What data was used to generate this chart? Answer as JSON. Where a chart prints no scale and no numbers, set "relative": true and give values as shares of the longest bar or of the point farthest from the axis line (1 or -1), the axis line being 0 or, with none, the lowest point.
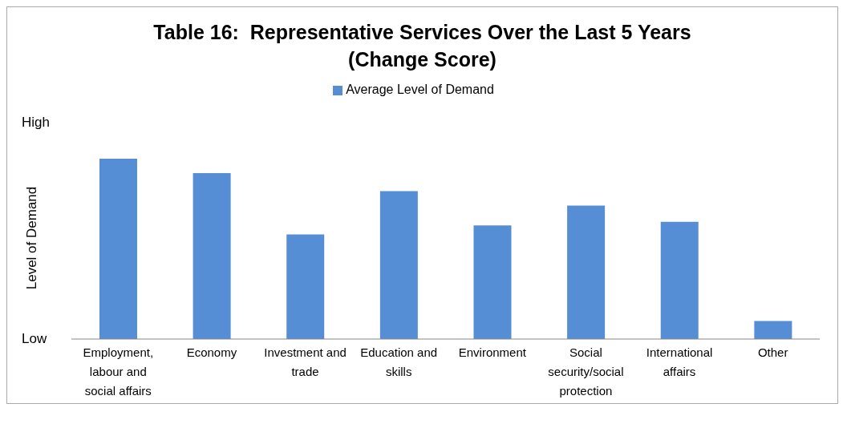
{
  "chart_data": {
    "type": "bar",
    "title": "Table 16:  Representative Services Over the Last 5 Years\n(Change Score)",
    "ylabel": "Level of Demand",
    "relative": true,
    "categories": [
      "Employment, labour and social affairs",
      "Economy",
      "Investment and trade",
      "Education and skills",
      "Environment",
      "Social security/social protection",
      "International affairs",
      "Other"
    ],
    "series": [
      {
        "name": "Average Level of Demand",
        "color": "#558ed5",
        "values": [
          1,
          0.92,
          0.58,
          0.82,
          0.63,
          0.74,
          0.65,
          0.1
        ]
      }
    ],
    "annotations": [
      "High",
      "Low"
    ],
    "legend": "top",
    "grid": false
  }
}
